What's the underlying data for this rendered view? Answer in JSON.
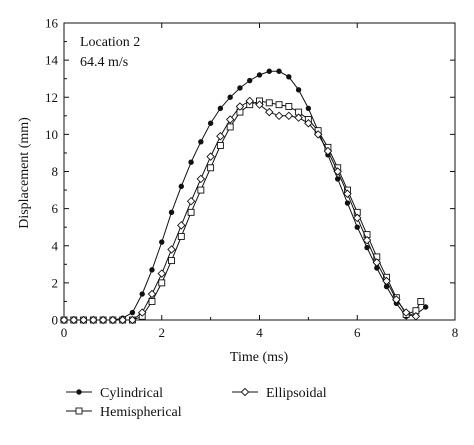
{
  "chart_data": {
    "type": "line",
    "xlabel": "Time (ms)",
    "ylabel": "Displacement (mm)",
    "xlim": [
      0,
      8
    ],
    "ylim": [
      0,
      16
    ],
    "xticks": [
      0,
      2,
      4,
      6,
      8
    ],
    "yticks": [
      0,
      2,
      4,
      6,
      8,
      10,
      12,
      14,
      16
    ],
    "grid": false,
    "annotations": [
      "Location 2",
      "64.4 m/s"
    ],
    "legend_position": "bottom",
    "series": [
      {
        "name": "Cylindrical",
        "marker": "filled-circle",
        "x": [
          0,
          0.2,
          0.4,
          0.6,
          0.8,
          1.0,
          1.2,
          1.4,
          1.6,
          1.8,
          2.0,
          2.2,
          2.4,
          2.6,
          2.8,
          3.0,
          3.2,
          3.4,
          3.6,
          3.8,
          4.0,
          4.2,
          4.4,
          4.6,
          4.8,
          5.0,
          5.2,
          5.4,
          5.6,
          5.8,
          6.0,
          6.2,
          6.4,
          6.6,
          6.8,
          7.0,
          7.2,
          7.4
        ],
        "y": [
          0,
          0,
          0,
          0,
          0,
          0,
          0.1,
          0.4,
          1.4,
          2.7,
          4.2,
          5.8,
          7.2,
          8.5,
          9.6,
          10.6,
          11.4,
          12.0,
          12.5,
          12.9,
          13.2,
          13.4,
          13.4,
          13.1,
          12.4,
          11.4,
          10.2,
          8.9,
          7.6,
          6.3,
          5.0,
          3.9,
          2.8,
          1.8,
          0.9,
          0.2,
          0.3,
          0.7
        ]
      },
      {
        "name": "Hemispherical",
        "marker": "open-square",
        "x": [
          0,
          0.2,
          0.4,
          0.6,
          0.8,
          1.0,
          1.2,
          1.4,
          1.6,
          1.8,
          2.0,
          2.2,
          2.4,
          2.6,
          2.8,
          3.0,
          3.2,
          3.4,
          3.6,
          3.8,
          4.0,
          4.2,
          4.4,
          4.6,
          4.8,
          5.0,
          5.2,
          5.4,
          5.6,
          5.8,
          6.0,
          6.2,
          6.4,
          6.6,
          6.8,
          7.0,
          7.2,
          7.3
        ],
        "y": [
          0,
          0,
          0,
          0,
          0,
          0,
          0,
          0,
          0.2,
          1.0,
          2.0,
          3.2,
          4.5,
          5.8,
          7.0,
          8.2,
          9.4,
          10.4,
          11.2,
          11.6,
          11.8,
          11.7,
          11.6,
          11.5,
          11.2,
          10.8,
          10.2,
          9.3,
          8.2,
          7.0,
          5.8,
          4.6,
          3.4,
          2.3,
          1.2,
          0.3,
          0.5,
          1.0
        ]
      },
      {
        "name": "Ellipsoidal",
        "marker": "open-diamond",
        "x": [
          0,
          0.2,
          0.4,
          0.6,
          0.8,
          1.0,
          1.2,
          1.4,
          1.6,
          1.8,
          2.0,
          2.2,
          2.4,
          2.6,
          2.8,
          3.0,
          3.2,
          3.4,
          3.6,
          3.8,
          4.0,
          4.2,
          4.4,
          4.6,
          4.8,
          5.0,
          5.2,
          5.4,
          5.6,
          5.8,
          6.0,
          6.2,
          6.4,
          6.6,
          6.8,
          7.0,
          7.2
        ],
        "y": [
          0,
          0,
          0,
          0,
          0,
          0,
          0,
          0,
          0.4,
          1.4,
          2.5,
          3.8,
          5.1,
          6.4,
          7.6,
          8.8,
          9.9,
          10.8,
          11.5,
          11.8,
          11.6,
          11.2,
          11.0,
          11.0,
          10.9,
          10.6,
          10.0,
          9.1,
          8.0,
          6.8,
          5.5,
          4.3,
          3.1,
          2.1,
          1.1,
          0.4,
          0.2
        ]
      }
    ]
  }
}
